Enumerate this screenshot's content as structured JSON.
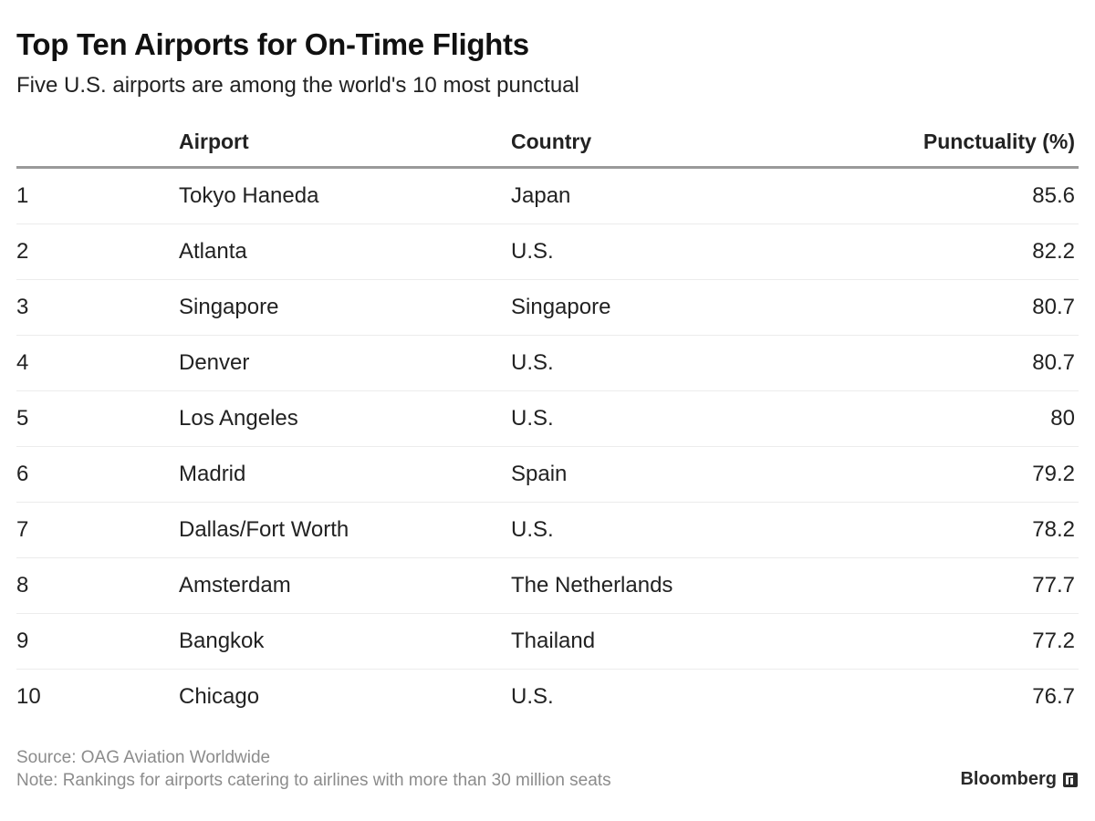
{
  "chart_data": {
    "type": "table",
    "title": "Top Ten Airports for On-Time Flights",
    "subtitle": "Five U.S. airports are among the world's 10 most punctual",
    "columns": [
      "",
      "Airport",
      "Country",
      "Punctuality (%)"
    ],
    "rows": [
      {
        "rank": "1",
        "airport": "Tokyo Haneda",
        "country": "Japan",
        "punctuality": "85.6"
      },
      {
        "rank": "2",
        "airport": "Atlanta",
        "country": "U.S.",
        "punctuality": "82.2"
      },
      {
        "rank": "3",
        "airport": "Singapore",
        "country": "Singapore",
        "punctuality": "80.7"
      },
      {
        "rank": "4",
        "airport": "Denver",
        "country": "U.S.",
        "punctuality": "80.7"
      },
      {
        "rank": "5",
        "airport": "Los Angeles",
        "country": "U.S.",
        "punctuality": "80"
      },
      {
        "rank": "6",
        "airport": "Madrid",
        "country": "Spain",
        "punctuality": "79.2"
      },
      {
        "rank": "7",
        "airport": "Dallas/Fort Worth",
        "country": "U.S.",
        "punctuality": "78.2"
      },
      {
        "rank": "8",
        "airport": "Amsterdam",
        "country": "The Netherlands",
        "punctuality": "77.7"
      },
      {
        "rank": "9",
        "airport": "Bangkok",
        "country": "Thailand",
        "punctuality": "77.2"
      },
      {
        "rank": "10",
        "airport": "Chicago",
        "country": "U.S.",
        "punctuality": "76.7"
      }
    ],
    "source": "Source: OAG Aviation Worldwide",
    "note": "Note: Rankings for airports catering to airlines with more than 30 million seats"
  },
  "brand": {
    "name": "Bloomberg",
    "icon": "bloomberg-logo-icon"
  },
  "colors": {
    "header_rule": "#9a9a9a",
    "row_divider": "#ececec",
    "footer_text": "#8c8c8c"
  }
}
